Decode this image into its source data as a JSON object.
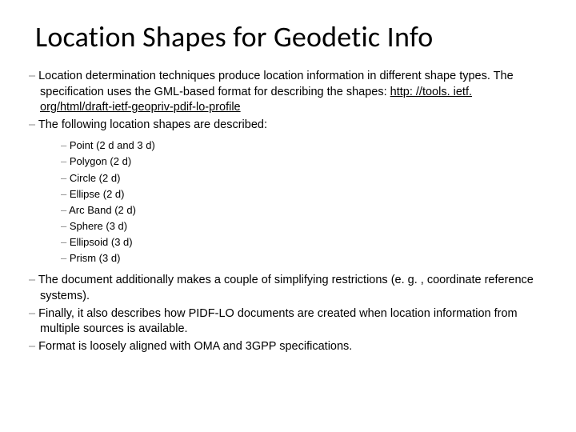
{
  "title": "Location Shapes for Geodetic Info",
  "colors": {
    "background": "#ffffff",
    "text": "#000000",
    "dash": "#888888",
    "link": "#000000"
  },
  "typography": {
    "title_fontsize": 36,
    "title_family": "Calibri",
    "body_fontsize": 14.5,
    "sub_fontsize": 13,
    "body_family": "Arial"
  },
  "bullets": {
    "b1_pre": "Location determination techniques produce location information in different shape types. The specification uses the GML-based format for describing the shapes: ",
    "b1_link": "http: //tools. ietf. org/html/draft-ietf-geopriv-pdif-lo-profile",
    "b2": "The following location shapes are described:",
    "sub": [
      "Point (2 d and 3 d)",
      "Polygon (2 d)",
      "Circle (2 d)",
      "Ellipse (2 d)",
      "Arc Band (2 d)",
      "Sphere (3 d)",
      "Ellipsoid (3 d)",
      "Prism (3 d)"
    ],
    "b3": "The document additionally makes a couple of simplifying restrictions (e. g. , coordinate reference systems).",
    "b4": "Finally, it also describes how PIDF-LO documents are created when location information from multiple sources is available.",
    "b5": "Format is loosely aligned with OMA and 3GPP specifications."
  },
  "dash_char": "– "
}
